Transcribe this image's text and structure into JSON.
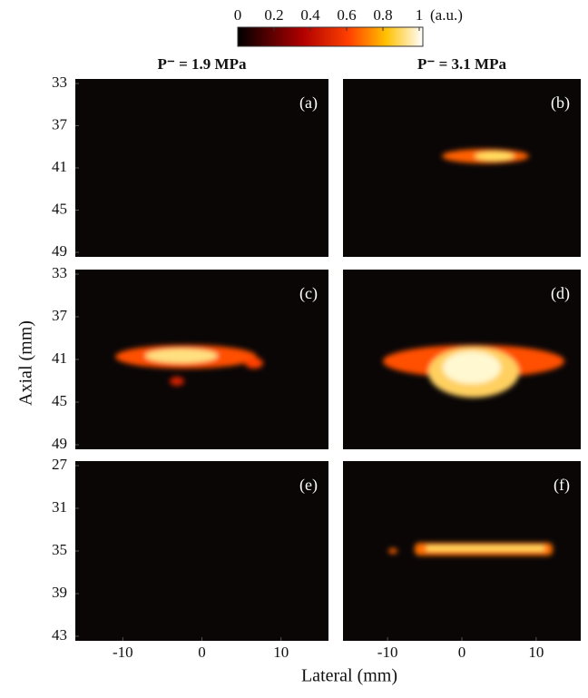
{
  "figure": {
    "colorbar": {
      "lim": [
        0,
        1
      ],
      "ticks": [
        0,
        0.2,
        0.4,
        0.6,
        0.8,
        1
      ],
      "unit": "(a.u.)"
    },
    "y_label": "Axial (mm)",
    "x_label": "Lateral (mm)",
    "columns": [
      {
        "title": "P⁻ = 1.9 MPa",
        "xlim": [
          -16,
          16
        ],
        "xticks": [
          -10,
          0,
          10
        ]
      },
      {
        "title": "P⁻ = 3.1 MPa",
        "xlim": [
          -16,
          16
        ],
        "xticks": [
          -10,
          0,
          10
        ]
      }
    ],
    "rows": [
      {
        "ylim": [
          33,
          49
        ],
        "yticks": [
          33,
          37,
          41,
          45,
          49
        ]
      },
      {
        "ylim": [
          33,
          49
        ],
        "yticks": [
          33,
          37,
          41,
          45,
          49
        ]
      },
      {
        "ylim": [
          27,
          43
        ],
        "yticks": [
          27,
          31,
          35,
          39,
          43
        ]
      }
    ],
    "panels": [
      "(a)",
      "(b)",
      "(c)",
      "(d)",
      "(e)",
      "(f)"
    ]
  }
}
